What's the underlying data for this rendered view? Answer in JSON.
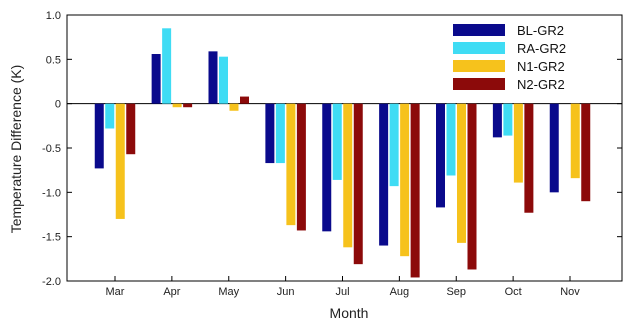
{
  "chart_data": {
    "type": "bar",
    "xlabel": "Month",
    "ylabel": "Temperature Difference (K)",
    "ylim": [
      -2.0,
      1.0
    ],
    "yticks": [
      1.0,
      0.5,
      0,
      -0.5,
      -1.0,
      -1.5,
      -2.0
    ],
    "ytick_labels": [
      "1.0",
      "0.5",
      "0",
      "-0.5",
      "-1.0",
      "-1.5",
      "-2.0"
    ],
    "categories": [
      "Mar",
      "Apr",
      "May",
      "Jun",
      "Jul",
      "Aug",
      "Sep",
      "Oct",
      "Nov"
    ],
    "legend_position": "top-right",
    "grid": false,
    "series": [
      {
        "name": "BL-GR2",
        "color": "#0a0a8c",
        "values": [
          -0.73,
          0.56,
          0.59,
          -0.67,
          -1.44,
          -1.6,
          -1.17,
          -0.38,
          -1.0
        ]
      },
      {
        "name": "RA-GR2",
        "color": "#3fdcf4",
        "values": [
          -0.28,
          0.85,
          0.53,
          -0.67,
          -0.86,
          -0.93,
          -0.81,
          -0.36,
          0
        ]
      },
      {
        "name": "N1-GR2",
        "color": "#f6c21c",
        "values": [
          -1.3,
          -0.04,
          -0.08,
          -1.37,
          -1.62,
          -1.72,
          -1.57,
          -0.89,
          -0.84
        ]
      },
      {
        "name": "N2-GR2",
        "color": "#8c0a0a",
        "values": [
          -0.57,
          -0.04,
          0.08,
          -1.43,
          -1.81,
          -1.96,
          -1.87,
          -1.23,
          -1.1
        ]
      }
    ]
  }
}
